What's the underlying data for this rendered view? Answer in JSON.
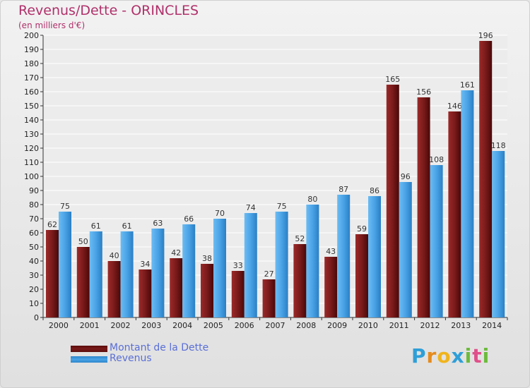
{
  "title": "Revenus/Dette - ORINCLES",
  "subtitle": "(en milliers d'€)",
  "logo_text": "Proxiti",
  "colors": {
    "dette": "#7a1a1a",
    "revenus": "#4aa3e6",
    "title": "#b0306a",
    "legend_text": "#5a6fd6"
  },
  "legend": [
    {
      "label": "Montant de la Dette",
      "series": "dette"
    },
    {
      "label": "Revenus",
      "series": "revenus"
    }
  ],
  "chart_data": {
    "type": "bar",
    "categories": [
      "2000",
      "2001",
      "2002",
      "2003",
      "2004",
      "2005",
      "2006",
      "2007",
      "2008",
      "2009",
      "2010",
      "2011",
      "2012",
      "2013",
      "2014"
    ],
    "series": [
      {
        "name": "Montant de la Dette",
        "values": [
          62,
          50,
          40,
          34,
          42,
          38,
          33,
          27,
          52,
          43,
          59,
          165,
          156,
          146,
          196
        ]
      },
      {
        "name": "Revenus",
        "values": [
          75,
          61,
          61,
          63,
          66,
          70,
          74,
          75,
          80,
          87,
          86,
          96,
          108,
          161,
          118
        ]
      }
    ],
    "ylim": [
      0,
      200
    ],
    "ytick_step": 10,
    "grid": true,
    "legend_position": "bottom-left"
  }
}
